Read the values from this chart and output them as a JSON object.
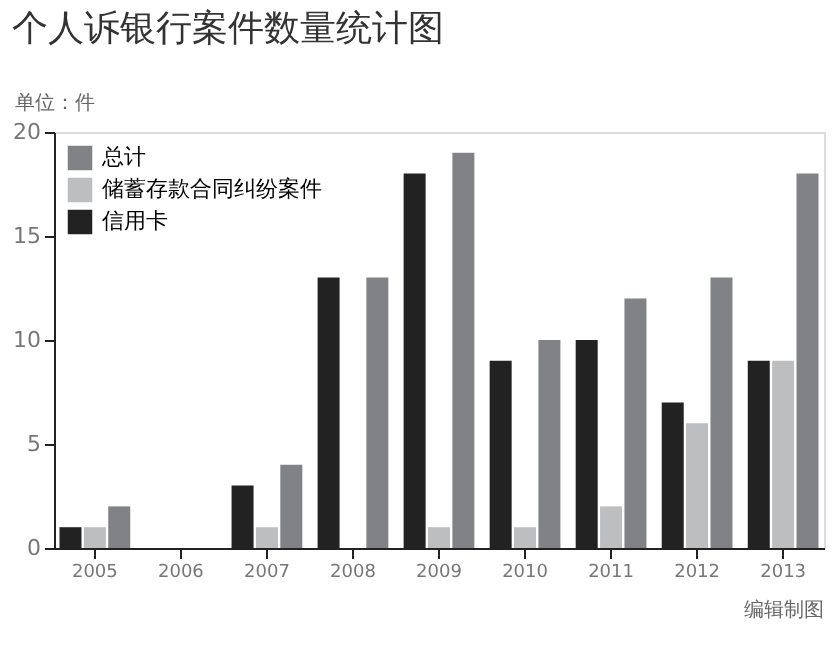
{
  "chart_data": {
    "type": "bar",
    "title": "个人诉银行案件数量统计图",
    "ylabel": "单位：件",
    "categories": [
      "2005",
      "2006",
      "2007",
      "2008",
      "2009",
      "2010",
      "2011",
      "2012",
      "2013"
    ],
    "series": [
      {
        "name": "总计",
        "color": "#808285",
        "values": [
          2,
          0,
          4,
          13,
          19,
          10,
          12,
          13,
          18
        ]
      },
      {
        "name": "储蓄存款合同纠纷案件",
        "color": "#bdbec0",
        "values": [
          1,
          0,
          1,
          0,
          1,
          1,
          2,
          6,
          9
        ]
      },
      {
        "name": "信用卡",
        "color": "#222222",
        "values": [
          1,
          0,
          3,
          13,
          18,
          9,
          10,
          7,
          9
        ]
      }
    ],
    "ylim": [
      0,
      20
    ],
    "yticks": [
      0,
      5,
      10,
      15,
      20
    ],
    "grid": false,
    "legend": "top left",
    "annotations": [
      "编辑制图"
    ]
  }
}
